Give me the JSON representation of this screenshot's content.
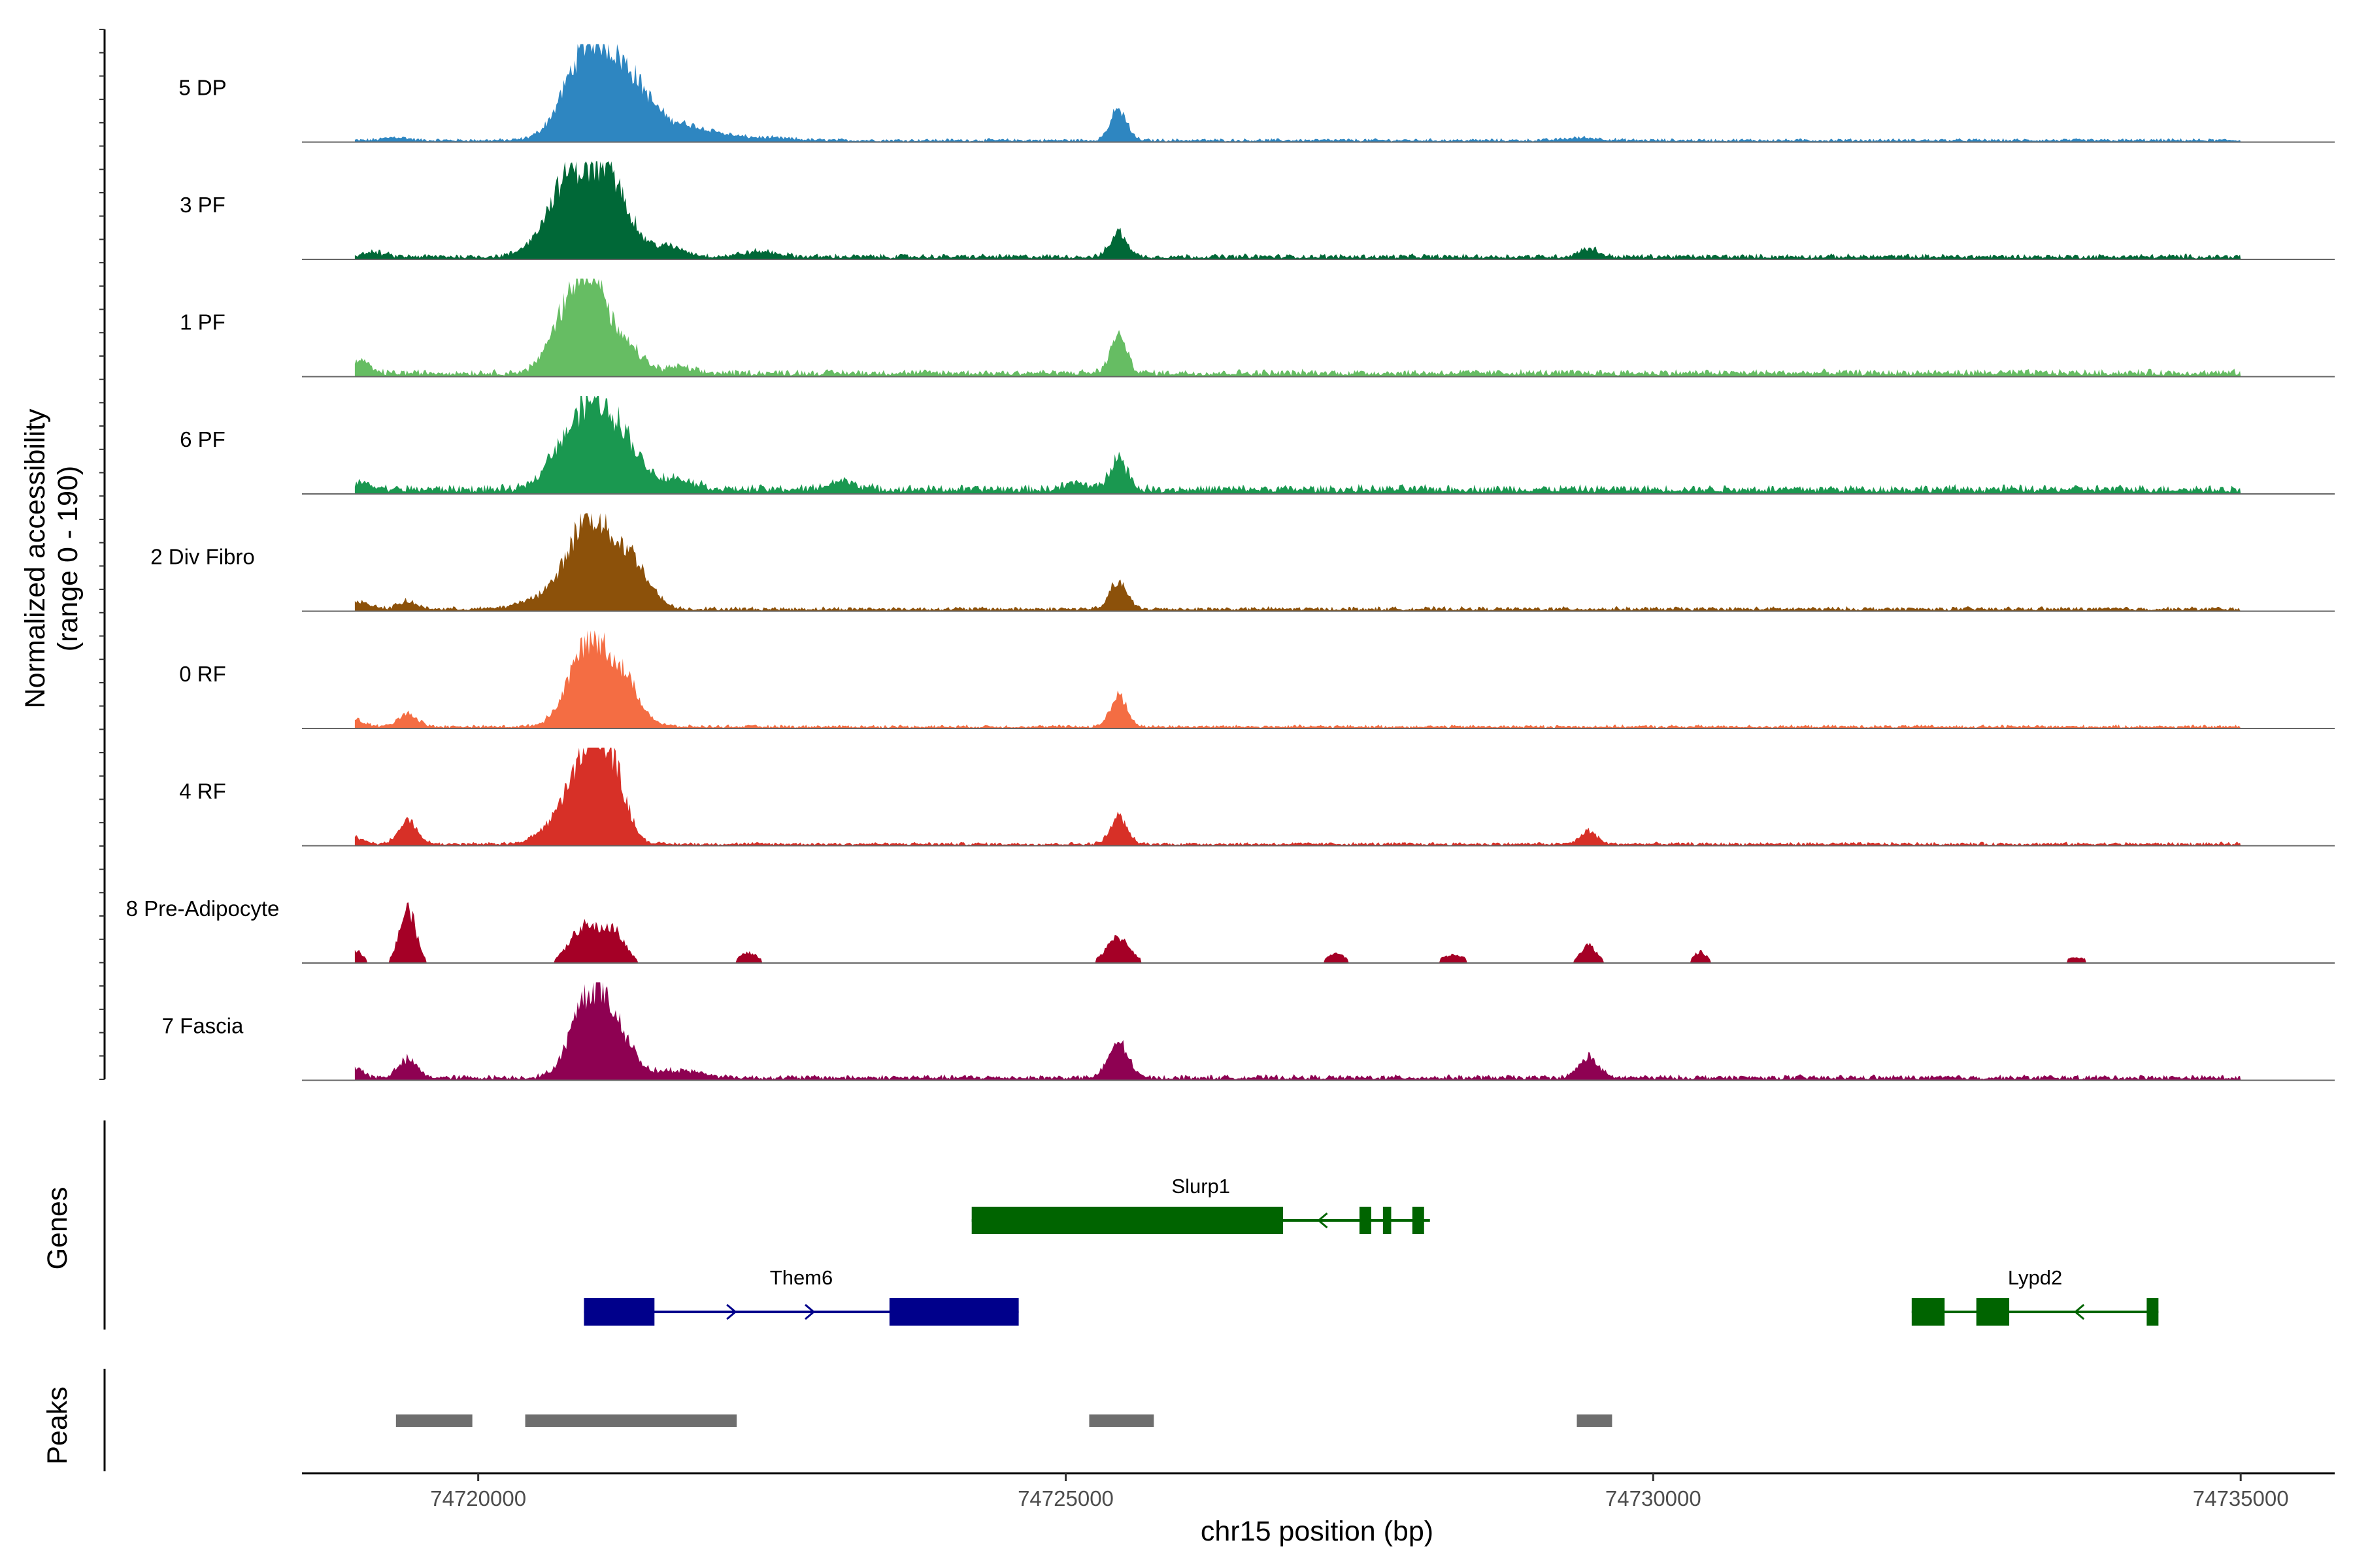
{
  "chart_data": {
    "type": "genome_coverage",
    "chromosome": "chr15",
    "x_axis": {
      "label": "chr15 position (bp)",
      "range": [
        74718500,
        74735800
      ],
      "ticks": [
        74720000,
        74725000,
        74730000,
        74735000
      ],
      "tick_labels": [
        "74720000",
        "74725000",
        "74730000",
        "74735000"
      ]
    },
    "y_axis": {
      "label_line1": "Normalized accessibility",
      "label_line2": "(range 0 - 190)",
      "range": [
        0,
        190
      ]
    },
    "tracks": [
      {
        "name": "5 DP",
        "color": "#2e86c1",
        "baseline": 4,
        "peaks": [
          [
            74720950,
            185,
            200
          ],
          [
            74721300,
            85,
            170
          ],
          [
            74721700,
            30,
            300
          ],
          [
            74725450,
            60,
            70
          ],
          [
            74719300,
            6,
            100
          ],
          [
            74722500,
            4,
            200
          ],
          [
            74729400,
            5,
            150
          ]
        ]
      },
      {
        "name": "3 PF",
        "color": "#006837",
        "baseline": 6,
        "peaks": [
          [
            74720800,
            160,
            200
          ],
          [
            74721150,
            120,
            150
          ],
          [
            74721600,
            20,
            150
          ],
          [
            74725450,
            48,
            70
          ],
          [
            74719100,
            8,
            100
          ],
          [
            74729450,
            16,
            80
          ],
          [
            74722400,
            10,
            150
          ]
        ]
      },
      {
        "name": "1 PF",
        "color": "#66bd63",
        "baseline": 8,
        "peaks": [
          [
            74720950,
            190,
            150
          ],
          [
            74720700,
            70,
            130
          ],
          [
            74721300,
            40,
            120
          ],
          [
            74725450,
            70,
            70
          ],
          [
            74719000,
            25,
            70
          ],
          [
            74721700,
            12,
            100
          ]
        ]
      },
      {
        "name": "6 PF",
        "color": "#1a9850",
        "baseline": 10,
        "peaks": [
          [
            74720950,
            160,
            170
          ],
          [
            74721250,
            80,
            150
          ],
          [
            74720650,
            45,
            120
          ],
          [
            74721700,
            20,
            150
          ],
          [
            74725450,
            65,
            70
          ],
          [
            74719000,
            12,
            100
          ],
          [
            74723100,
            16,
            120
          ],
          [
            74725100,
            12,
            100
          ]
        ]
      },
      {
        "name": "2 Div Fibro",
        "color": "#8c510a",
        "baseline": 5,
        "peaks": [
          [
            74720950,
            170,
            170
          ],
          [
            74721300,
            90,
            150
          ],
          [
            74720600,
            25,
            200
          ],
          [
            74725450,
            55,
            70
          ],
          [
            74719000,
            12,
            100
          ],
          [
            74719400,
            14,
            80
          ]
        ]
      },
      {
        "name": "0 RF",
        "color": "#f46d43",
        "baseline": 4,
        "peaks": [
          [
            74720950,
            165,
            170
          ],
          [
            74721250,
            70,
            140
          ],
          [
            74725450,
            60,
            70
          ],
          [
            74719400,
            26,
            80
          ],
          [
            74718950,
            14,
            80
          ]
        ]
      },
      {
        "name": "4 RF",
        "color": "#d73027",
        "baseline": 4,
        "peaks": [
          [
            74720950,
            175,
            160
          ],
          [
            74721150,
            90,
            120
          ],
          [
            74720650,
            30,
            150
          ],
          [
            74725450,
            55,
            70
          ],
          [
            74719400,
            45,
            80
          ],
          [
            74729450,
            25,
            70
          ],
          [
            74718950,
            14,
            80
          ]
        ]
      },
      {
        "name": "8 Pre-Adipocyte",
        "color": "#a50026",
        "baseline": 0,
        "peaks": [
          [
            74719400,
            105,
            70
          ],
          [
            74720900,
            70,
            120
          ],
          [
            74721150,
            60,
            100
          ],
          [
            74725450,
            50,
            100
          ],
          [
            74718950,
            25,
            70
          ],
          [
            74729450,
            35,
            70
          ],
          [
            74730400,
            22,
            60
          ],
          [
            74722300,
            20,
            80
          ],
          [
            74727300,
            18,
            80
          ],
          [
            74728300,
            16,
            100
          ],
          [
            74733600,
            10,
            120
          ]
        ]
      },
      {
        "name": "7 Fascia",
        "color": "#8e0152",
        "baseline": 6,
        "peaks": [
          [
            74720950,
            160,
            150
          ],
          [
            74721200,
            70,
            130
          ],
          [
            74725450,
            70,
            80
          ],
          [
            74719400,
            35,
            80
          ],
          [
            74718950,
            20,
            70
          ],
          [
            74729450,
            40,
            80
          ],
          [
            74721700,
            14,
            200
          ]
        ]
      }
    ],
    "genes": [
      {
        "name": "Slurp1",
        "strand": "-",
        "color": "#006400",
        "row": 0,
        "start": 74724200,
        "end": 74728100,
        "exons": [
          [
            74724200,
            74726850
          ],
          [
            74727500,
            74727600
          ],
          [
            74727700,
            74727770
          ],
          [
            74727950,
            74728050
          ]
        ]
      },
      {
        "name": "Them6",
        "strand": "+",
        "color": "#00008b",
        "row": 1,
        "start": 74720900,
        "end": 74724600,
        "exons": [
          [
            74720900,
            74721500
          ],
          [
            74723500,
            74724600
          ]
        ]
      },
      {
        "name": "Lypd2",
        "strand": "-",
        "color": "#006400",
        "row": 1,
        "start": 74732200,
        "end": 74734300,
        "exons": [
          [
            74732200,
            74732480
          ],
          [
            74732750,
            74733030
          ],
          [
            74734200,
            74734300
          ]
        ]
      }
    ],
    "peaks": [
      [
        74719300,
        74719950
      ],
      [
        74720400,
        74722200
      ],
      [
        74725200,
        74725750
      ],
      [
        74729350,
        74729650
      ]
    ],
    "panel_labels": {
      "genes": "Genes",
      "peaks": "Peaks"
    }
  }
}
